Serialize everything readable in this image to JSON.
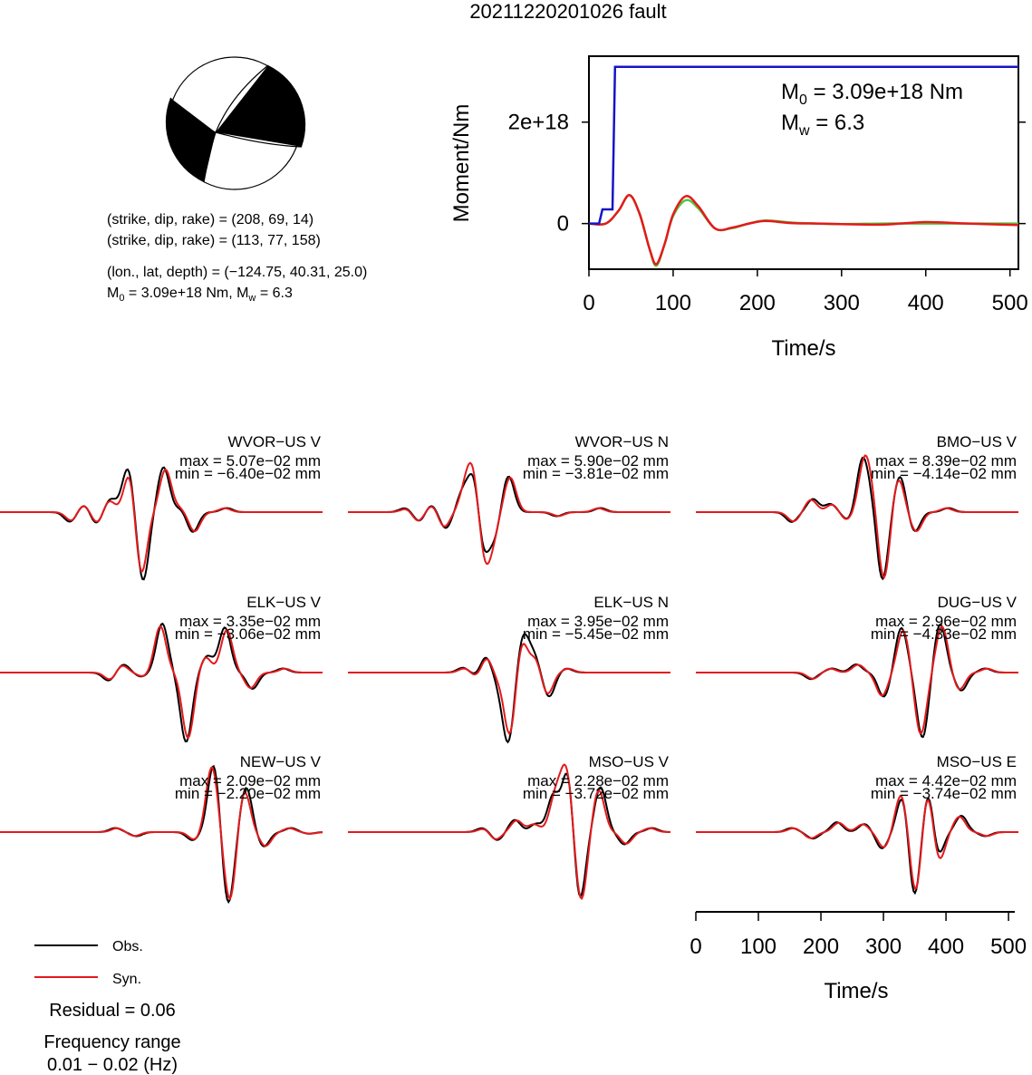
{
  "title": "20211220201026 fault",
  "focal_mechanism": {
    "plane1": "(strike, dip, rake) = (208, 69, 14)",
    "plane2": "(strike, dip, rake) = (113, 77, 158)",
    "location": "(lon., lat, depth) = (−124.75, 40.31, 25.0)",
    "moment_prefix": "M",
    "moment_sub": "0",
    "moment_mid": " = 3.09e+18 Nm, M",
    "moment_sub2": "w",
    "moment_end": " = 6.3"
  },
  "stf_chart": {
    "ylabel": "Moment/Nm",
    "xlabel": "Time/s",
    "m0_prefix": "M",
    "m0_sub": "0",
    "m0_value": " = 3.09e+18 Nm",
    "mw_prefix": "M",
    "mw_sub": "w",
    "mw_value": " = 6.3"
  },
  "waveform_panels": [
    {
      "label": "WVOR−US V",
      "max": "max = 5.07e−02 mm",
      "min": "min = −6.40e−02 mm"
    },
    {
      "label": "WVOR−US N",
      "max": "max = 5.90e−02 mm",
      "min": "min = −3.81e−02 mm"
    },
    {
      "label": "BMO−US V",
      "max": "max = 8.39e−02 mm",
      "min": "min = −4.14e−02 mm"
    },
    {
      "label": "ELK−US V",
      "max": "max = 3.35e−02 mm",
      "min": "min = −3.06e−02 mm"
    },
    {
      "label": "ELK−US N",
      "max": "max = 3.95e−02 mm",
      "min": "min = −5.45e−02 mm"
    },
    {
      "label": "DUG−US V",
      "max": "max = 2.96e−02 mm",
      "min": "min = −4.33e−02 mm"
    },
    {
      "label": "NEW−US V",
      "max": "max = 2.09e−02 mm",
      "min": "min = −2.20e−02 mm"
    },
    {
      "label": "MSO−US V",
      "max": "max = 2.28e−02 mm",
      "min": "min = −3.72e−02 mm"
    },
    {
      "label": "MSO−US E",
      "max": "max = 4.42e−02 mm",
      "min": "min = −3.74e−02 mm"
    }
  ],
  "waveform_axis": {
    "xlabel": "Time/s"
  },
  "legend": {
    "obs": "Obs.",
    "syn": "Syn."
  },
  "residual": "Residual = 0.06",
  "frequency_title": "Frequency range",
  "frequency_range": "0.01 − 0.02 (Hz)",
  "colors": {
    "obs": "#000000",
    "syn": "#e41a1c",
    "stf": "#1414c8",
    "moment_green": "#4fc83a"
  },
  "chart_data": [
    {
      "type": "line",
      "name": "moment-rate",
      "xlabel": "Time/s",
      "ylabel": "Moment/Nm",
      "xlim": [
        0,
        510
      ],
      "ylim": [
        -9e+17,
        3.3e+18
      ],
      "xticks": [
        0,
        100,
        200,
        300,
        400,
        500
      ],
      "yticks": [
        {
          "value": 0,
          "label": "0"
        },
        {
          "value": 2e+18,
          "label": "2e+18"
        }
      ],
      "series": [
        {
          "color": "#1414c8",
          "x": [
            0,
            12,
            16,
            28,
            31,
            510
          ],
          "y": [
            0,
            0,
            2.8e+17,
            2.8e+17,
            3.09e+18,
            3.09e+18
          ]
        },
        {
          "color": "#4fc83a",
          "x": [
            0,
            20,
            35,
            48,
            60,
            72,
            80,
            90,
            100,
            115,
            130,
            150,
            170,
            190,
            210,
            240,
            270,
            300,
            350,
            400,
            450,
            510
          ],
          "y": [
            0,
            0,
            2.5e+17,
            5.6e+17,
            2e+17,
            -5e+17,
            -8.3e+17,
            -4e+17,
            1.5e+17,
            4.6e+17,
            3e+17,
            -1e+17,
            -9e+16,
            0,
            6e+16,
            2e+16,
            0,
            -1e+16,
            0,
            0,
            0,
            0
          ]
        },
        {
          "color": "#e41a1c",
          "x": [
            0,
            20,
            35,
            48,
            60,
            72,
            80,
            90,
            100,
            115,
            130,
            150,
            170,
            190,
            210,
            240,
            270,
            300,
            350,
            400,
            450,
            510
          ],
          "y": [
            0,
            0,
            2.5e+17,
            5.6e+17,
            2e+17,
            -5e+17,
            -8e+17,
            -4e+17,
            1.8e+17,
            5.4e+17,
            3.4e+17,
            -1e+17,
            -8e+16,
            0,
            5e+16,
            1e+16,
            0,
            -1e+16,
            -2e+16,
            3e+16,
            0,
            -3e+16
          ]
        }
      ]
    },
    {
      "type": "line",
      "name": "waveform-time-axis",
      "xlabel": "Time/s",
      "xlim": [
        0,
        510
      ],
      "xticks": [
        0,
        100,
        200,
        300,
        400,
        500
      ]
    }
  ]
}
